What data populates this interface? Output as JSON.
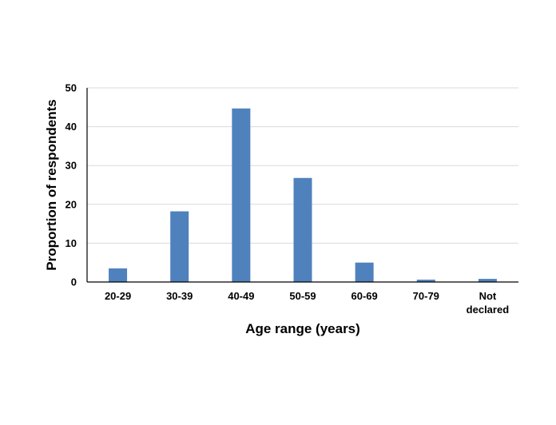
{
  "chart_data": {
    "type": "bar",
    "title": "",
    "xlabel": "Age range (years)",
    "ylabel": "Proportion of respondents",
    "categories": [
      "20-29",
      "30-39",
      "40-49",
      "50-59",
      "60-69",
      "70-79",
      "Not declared"
    ],
    "category_lines": [
      [
        "20-29"
      ],
      [
        "30-39"
      ],
      [
        "40-49"
      ],
      [
        "50-59"
      ],
      [
        "60-69"
      ],
      [
        "70-79"
      ],
      [
        "Not",
        "declared"
      ]
    ],
    "values": [
      3.5,
      18.2,
      44.7,
      26.8,
      5.0,
      0.6,
      0.8
    ],
    "ylim": [
      0,
      50
    ],
    "yticks": [
      "0",
      "10",
      "20",
      "30",
      "40",
      "50"
    ],
    "grid": true,
    "legend": "none",
    "bar_color": "#4f81bd"
  }
}
